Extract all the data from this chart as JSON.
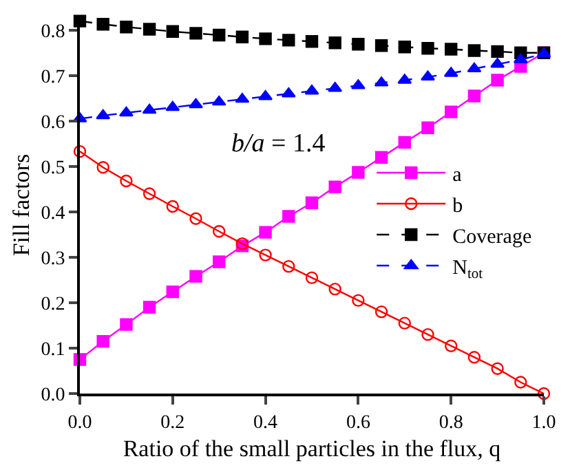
{
  "chart_data": {
    "type": "line",
    "xlabel": "Ratio of the small particles in the flux, q",
    "ylabel": "Fill factors",
    "annotations": [
      "b/a = 1.4"
    ],
    "x": [
      0,
      0.05,
      0.1,
      0.15,
      0.2,
      0.25,
      0.3,
      0.35,
      0.4,
      0.45,
      0.5,
      0.55,
      0.6,
      0.65,
      0.7,
      0.75,
      0.8,
      0.85,
      0.9,
      0.95,
      1.0
    ],
    "series": [
      {
        "name": "a",
        "color": "#ff00ff",
        "marker": "square",
        "line_style": "solid",
        "values": [
          0.075,
          0.115,
          0.152,
          0.19,
          0.224,
          0.258,
          0.29,
          0.325,
          0.355,
          0.39,
          0.42,
          0.455,
          0.487,
          0.52,
          0.553,
          0.585,
          0.62,
          0.655,
          0.69,
          0.72,
          0.75
        ]
      },
      {
        "name": "b",
        "color": "#ff0000",
        "marker": "circle",
        "line_style": "solid",
        "values": [
          0.533,
          0.498,
          0.468,
          0.44,
          0.412,
          0.385,
          0.357,
          0.33,
          0.305,
          0.28,
          0.255,
          0.23,
          0.205,
          0.18,
          0.155,
          0.13,
          0.105,
          0.08,
          0.055,
          0.025,
          0.0
        ]
      },
      {
        "name": "Coverage",
        "color": "#000000",
        "marker": "square",
        "line_style": "dashed",
        "values": [
          0.82,
          0.813,
          0.807,
          0.802,
          0.797,
          0.793,
          0.789,
          0.785,
          0.781,
          0.778,
          0.775,
          0.772,
          0.769,
          0.766,
          0.763,
          0.76,
          0.758,
          0.755,
          0.753,
          0.75,
          0.75
        ]
      },
      {
        "name": "N$_{tot}$",
        "color": "#0000ff",
        "marker": "triangle",
        "line_style": "dashed",
        "values": [
          0.605,
          0.612,
          0.618,
          0.624,
          0.63,
          0.636,
          0.642,
          0.648,
          0.654,
          0.66,
          0.666,
          0.672,
          0.678,
          0.684,
          0.69,
          0.697,
          0.705,
          0.715,
          0.725,
          0.735,
          0.748
        ]
      }
    ],
    "xlim": [
      0,
      1.0
    ],
    "xticks": [
      {
        "value": 0,
        "label": "0.0"
      },
      0.2,
      0.4,
      0.6,
      0.8,
      {
        "value": 1,
        "label": "1.0"
      }
    ],
    "ylim": [
      0,
      0.83
    ],
    "yticks": [
      {
        "value": 0,
        "label": "0.0"
      },
      0.1,
      0.2,
      0.3,
      0.4,
      0.5,
      0.6,
      0.7,
      0.8
    ],
    "legend": "bottom right"
  }
}
